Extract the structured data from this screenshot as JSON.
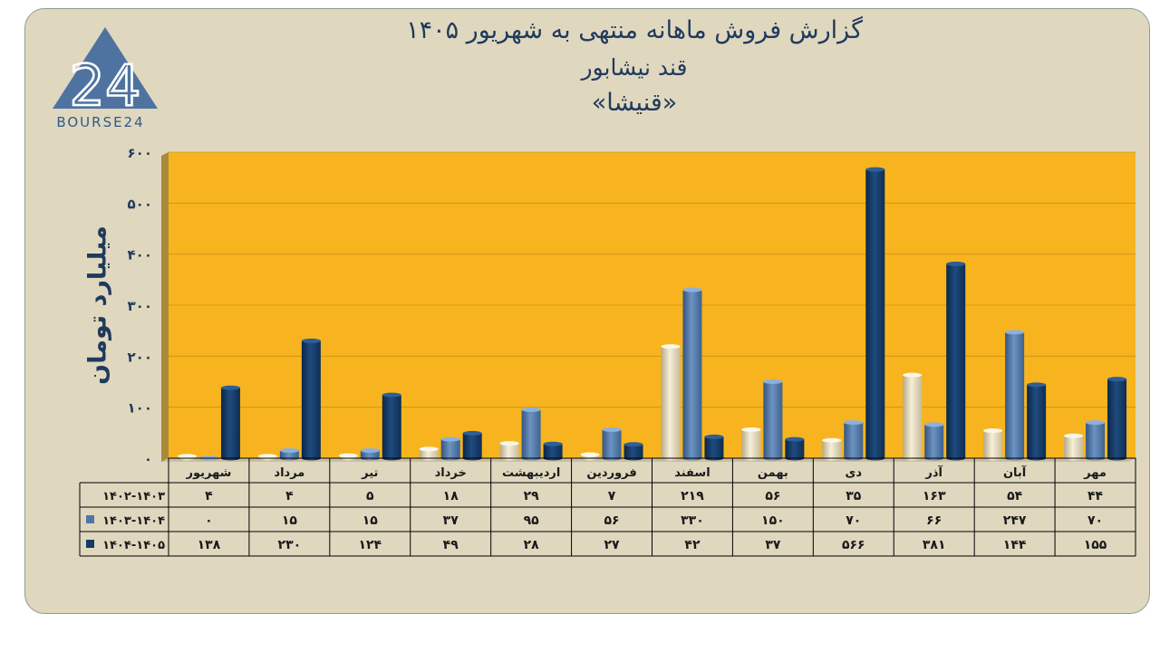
{
  "title_line1": "گزارش  فروش ماهانه منتهی به شهریور ۱۴۰۵",
  "title_line2": "قند نیشابور",
  "title_line3": "«قنیشا»",
  "brand": "BOURSE24",
  "logo_digits": "24",
  "ylabel": "میلیارد تومان",
  "colors": {
    "series1": "#ece1c3",
    "series2": "#4f76a6",
    "series3": "#153b66",
    "plot_bg": "#f8b41e",
    "panel_bg": "#e0d7bf"
  },
  "chart_data": {
    "type": "bar",
    "categories": [
      "مهر",
      "آبان",
      "آذر",
      "دی",
      "بهمن",
      "اسفند",
      "فروردین",
      "اردیبهشت",
      "خرداد",
      "تیر",
      "مرداد",
      "شهریور"
    ],
    "series": [
      {
        "name": "۱۴۰۲-۱۴۰۳",
        "values": [
          44,
          54,
          163,
          35,
          56,
          219,
          7,
          29,
          18,
          5,
          4,
          4
        ],
        "labels": [
          "۴۴",
          "۵۴",
          "۱۶۳",
          "۳۵",
          "۵۶",
          "۲۱۹",
          "۷",
          "۲۹",
          "۱۸",
          "۵",
          "۴",
          "۴"
        ]
      },
      {
        "name": "۱۴۰۳-۱۴۰۴",
        "values": [
          70,
          247,
          66,
          70,
          150,
          330,
          56,
          95,
          37,
          15,
          15,
          0
        ],
        "labels": [
          "۷۰",
          "۲۴۷",
          "۶۶",
          "۷۰",
          "۱۵۰",
          "۳۳۰",
          "۵۶",
          "۹۵",
          "۳۷",
          "۱۵",
          "۱۵",
          "۰"
        ]
      },
      {
        "name": "۱۴۰۴-۱۴۰۵",
        "values": [
          155,
          144,
          381,
          566,
          37,
          42,
          27,
          28,
          49,
          124,
          230,
          138
        ],
        "labels": [
          "۱۵۵",
          "۱۴۴",
          "۳۸۱",
          "۵۶۶",
          "۳۷",
          "۴۲",
          "۲۷",
          "۲۸",
          "۴۹",
          "۱۲۴",
          "۲۳۰",
          "۱۳۸"
        ]
      }
    ],
    "yticks": [
      0,
      100,
      200,
      300,
      400,
      500,
      600
    ],
    "ytick_labels": [
      "۰",
      "۱۰۰",
      "۲۰۰",
      "۳۰۰",
      "۴۰۰",
      "۵۰۰",
      "۶۰۰"
    ],
    "ylim": [
      0,
      600
    ],
    "grid": true,
    "legend": "data-table"
  }
}
